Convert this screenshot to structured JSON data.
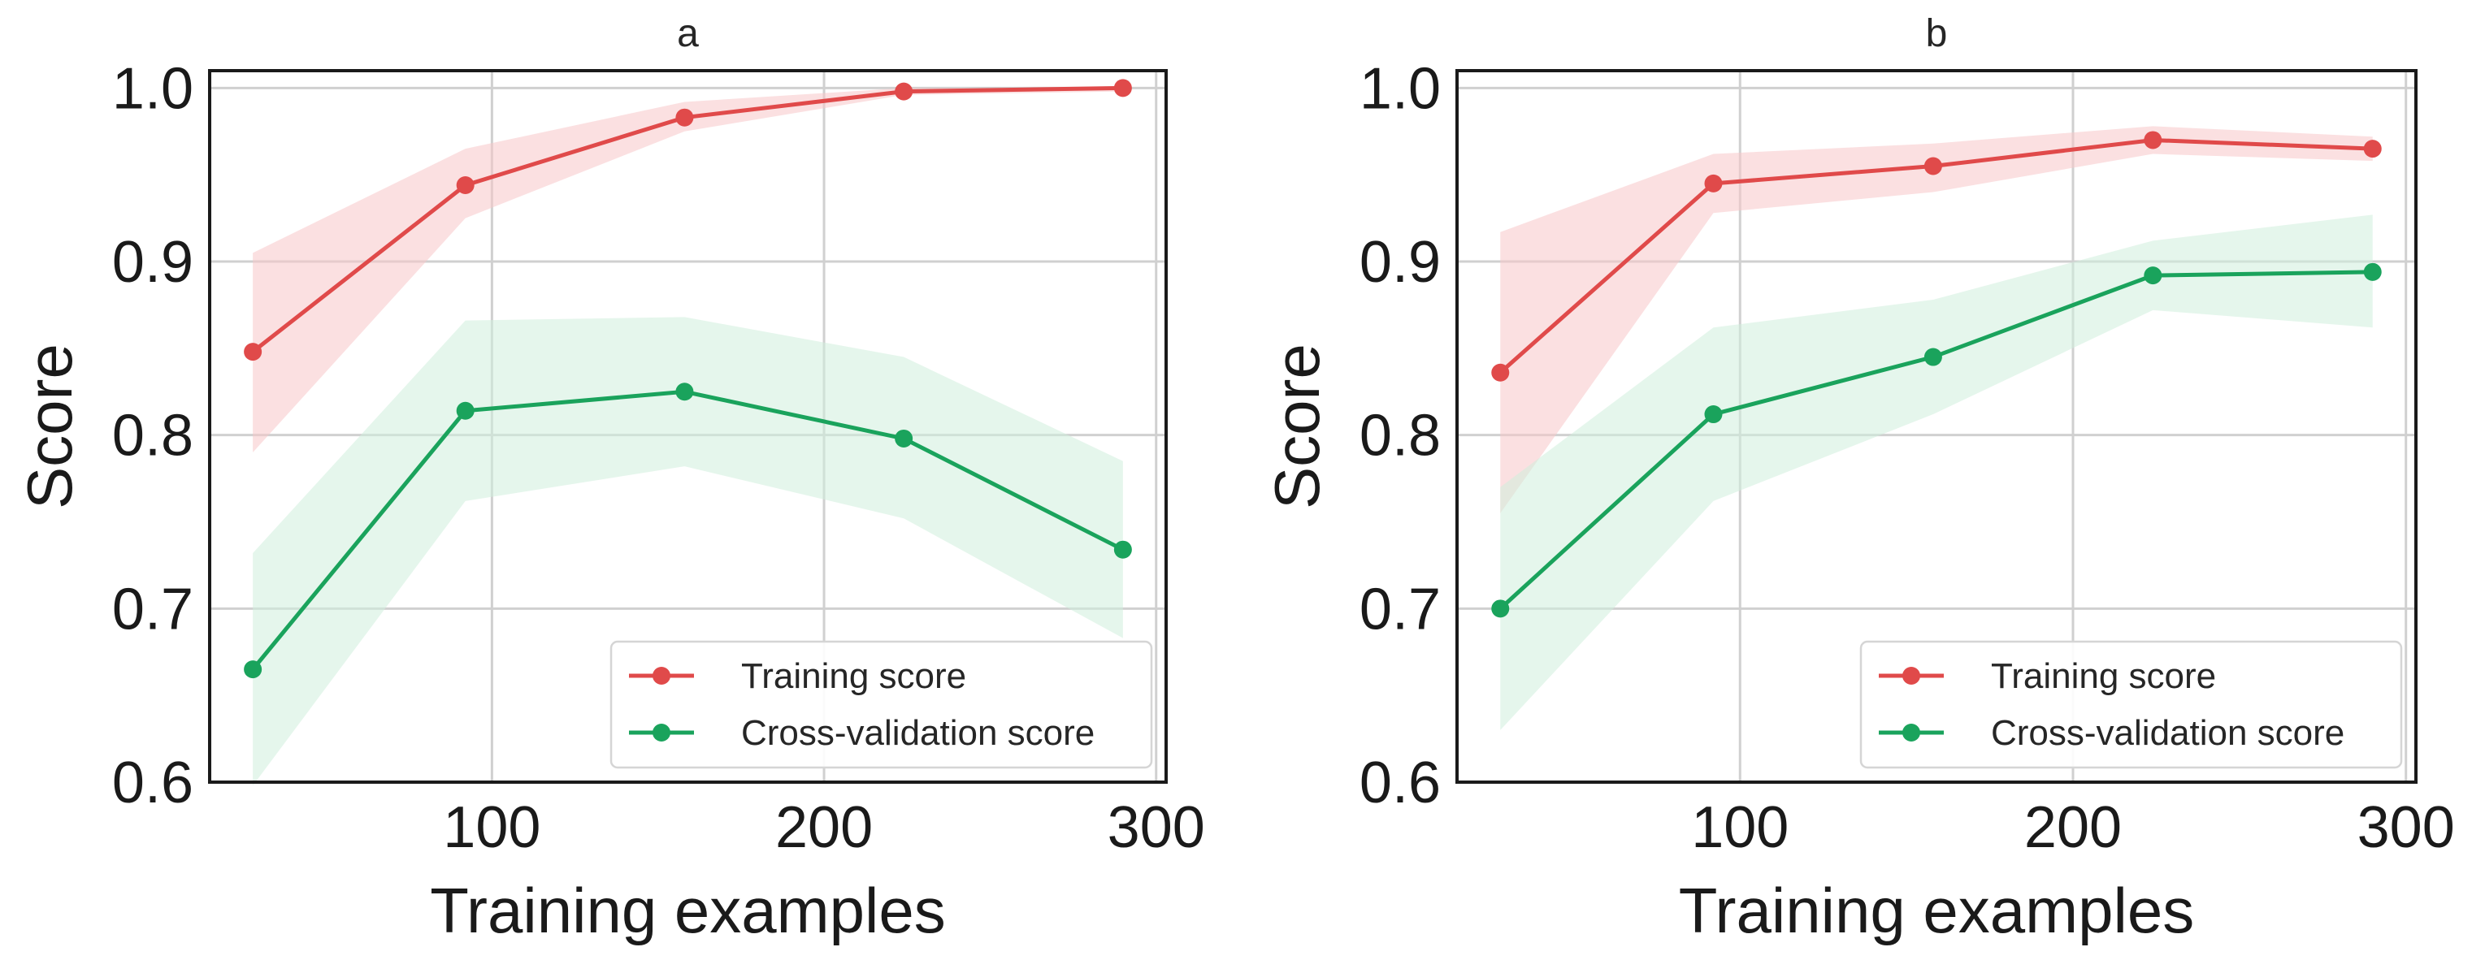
{
  "chart_data": [
    {
      "type": "line",
      "title": "a",
      "xlabel": "Training examples",
      "ylabel": "Score",
      "xlim": [
        15,
        303
      ],
      "ylim": [
        0.6,
        1.01
      ],
      "x_ticks": [
        100,
        200,
        300
      ],
      "y_ticks": [
        0.6,
        0.7,
        0.8,
        0.9,
        1.0
      ],
      "x_tick_labels": [
        "100",
        "200",
        "300"
      ],
      "y_tick_labels": [
        "0.6",
        "0.7",
        "0.8",
        "0.9",
        "1.0"
      ],
      "grid": true,
      "legend_position": "lower-right",
      "x": [
        28,
        92,
        158,
        224,
        290
      ],
      "series": [
        {
          "name": "Training score",
          "color": "#e04a4a",
          "band_color": "#f7c6c8",
          "values": [
            0.848,
            0.944,
            0.983,
            0.998,
            1.0
          ],
          "lower": [
            0.79,
            0.925,
            0.975,
            0.996,
            0.998
          ],
          "upper": [
            0.905,
            0.965,
            0.992,
            1.0,
            1.0
          ]
        },
        {
          "name": "Cross-validation score",
          "color": "#1aa35c",
          "band_color": "#cfeedd",
          "values": [
            0.665,
            0.814,
            0.825,
            0.798,
            0.734
          ],
          "lower": [
            0.598,
            0.762,
            0.782,
            0.752,
            0.683
          ],
          "upper": [
            0.732,
            0.866,
            0.868,
            0.845,
            0.785
          ]
        }
      ]
    },
    {
      "type": "line",
      "title": "b",
      "xlabel": "Training examples",
      "ylabel": "Score",
      "xlim": [
        15,
        303
      ],
      "ylim": [
        0.6,
        1.01
      ],
      "x_ticks": [
        100,
        200,
        300
      ],
      "y_ticks": [
        0.6,
        0.7,
        0.8,
        0.9,
        1.0
      ],
      "x_tick_labels": [
        "100",
        "200",
        "300"
      ],
      "y_tick_labels": [
        "0.6",
        "0.7",
        "0.8",
        "0.9",
        "1.0"
      ],
      "grid": true,
      "legend_position": "lower-right",
      "x": [
        28,
        92,
        158,
        224,
        290
      ],
      "series": [
        {
          "name": "Training score",
          "color": "#e04a4a",
          "band_color": "#f7c6c8",
          "values": [
            0.836,
            0.945,
            0.955,
            0.97,
            0.965
          ],
          "lower": [
            0.755,
            0.928,
            0.94,
            0.962,
            0.958
          ],
          "upper": [
            0.917,
            0.962,
            0.968,
            0.978,
            0.972
          ]
        },
        {
          "name": "Cross-validation score",
          "color": "#1aa35c",
          "band_color": "#cfeedd",
          "values": [
            0.7,
            0.812,
            0.845,
            0.892,
            0.894
          ],
          "lower": [
            0.63,
            0.762,
            0.812,
            0.872,
            0.862
          ],
          "upper": [
            0.77,
            0.862,
            0.878,
            0.912,
            0.927
          ]
        }
      ]
    }
  ]
}
